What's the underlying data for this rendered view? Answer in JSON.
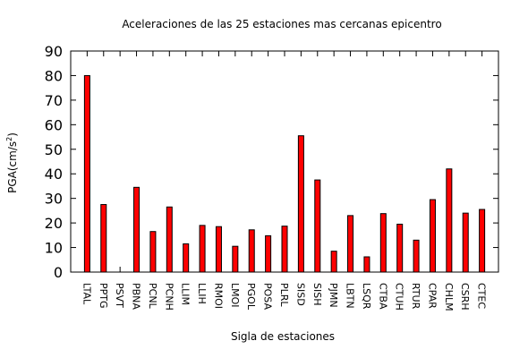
{
  "chart_data": {
    "type": "bar",
    "title": "Aceleraciones de las 25 estaciones mas cercanas epicentro",
    "xlabel": "Sigla de estaciones",
    "ylabel": "PGA(cm/s",
    "ylabel_sup": "2",
    "ylabel_close": ")",
    "ylim": [
      0,
      90
    ],
    "yticks": [
      "0",
      "10",
      "20",
      "30",
      "40",
      "50",
      "60",
      "70",
      "80",
      "90"
    ],
    "grid": false,
    "bar_color": "#ff0000",
    "categories": [
      "LTAL",
      "PPTG",
      "PSVT",
      "PBNA",
      "PCNL",
      "PCNH",
      "LLIM",
      "LLIH",
      "RMOI",
      "LMOI",
      "PGOL",
      "POSA",
      "PLRL",
      "SISD",
      "SISH",
      "PJMN",
      "LBTN",
      "LSQR",
      "CTBA",
      "CTUH",
      "RTUR",
      "CPAR",
      "CHLM",
      "CSRH",
      "CTEC"
    ],
    "values": [
      80,
      27.5,
      0,
      34.5,
      16.5,
      26.5,
      11.5,
      19,
      18.5,
      10.5,
      17.2,
      14.8,
      18.7,
      55.5,
      37.5,
      8.5,
      23,
      6.2,
      23.8,
      19.5,
      13,
      29.5,
      42,
      24,
      25.5
    ]
  }
}
